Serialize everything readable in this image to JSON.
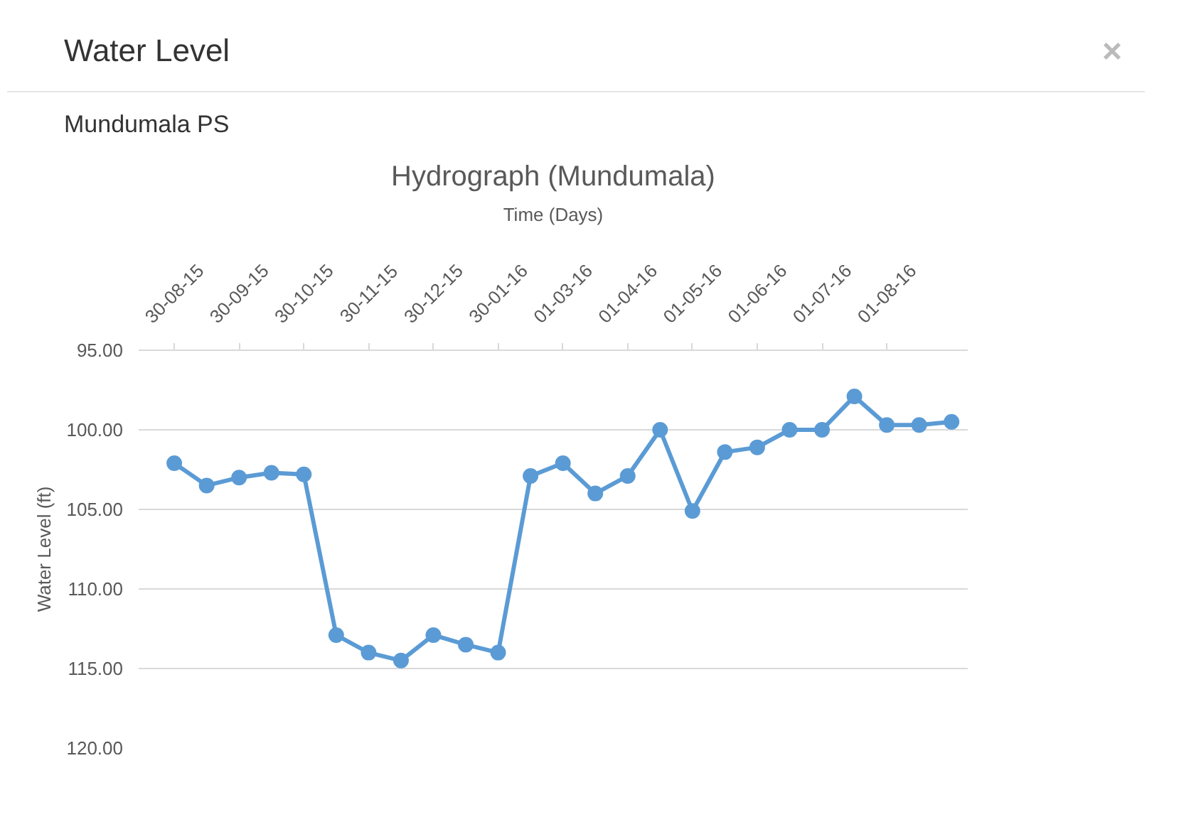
{
  "chart_data": {
    "type": "line",
    "title": "Hydrograph (Mundumala)",
    "xlabel": "Time (Days)",
    "ylabel": "Water Level (ft)",
    "annotations": [
      "Water Level",
      "×",
      "Mundumala PS"
    ],
    "categories": [
      "30-08-15",
      null,
      "30-09-15",
      null,
      "30-10-15",
      null,
      "30-11-15",
      null,
      "30-12-15",
      null,
      "30-01-16",
      null,
      "01-03-16",
      null,
      "01-04-16",
      null,
      "01-05-16",
      null,
      "01-06-16",
      null,
      "01-07-16",
      null,
      "01-08-16",
      null,
      null
    ],
    "series": [
      {
        "color": "#5b9bd5",
        "values": [
          102.1,
          103.5,
          103.0,
          102.7,
          102.8,
          112.9,
          114.0,
          114.5,
          112.9,
          113.5,
          114.0,
          102.9,
          102.1,
          104.0,
          102.9,
          100.0,
          105.1,
          101.4,
          101.1,
          100.0,
          100.0,
          97.9,
          99.7,
          99.7,
          99.5
        ]
      }
    ],
    "ylim": [
      120,
      95
    ],
    "yticks": [
      {
        "value": 95,
        "label": "95.00"
      },
      {
        "value": 100,
        "label": "100.00"
      },
      {
        "value": 105,
        "label": "105.00"
      },
      {
        "value": 110,
        "label": "110.00"
      },
      {
        "value": 115,
        "label": "115.00"
      },
      {
        "value": 120,
        "label": "120.00"
      }
    ],
    "grid": "y",
    "marker": "circle",
    "line_style": "solid"
  }
}
